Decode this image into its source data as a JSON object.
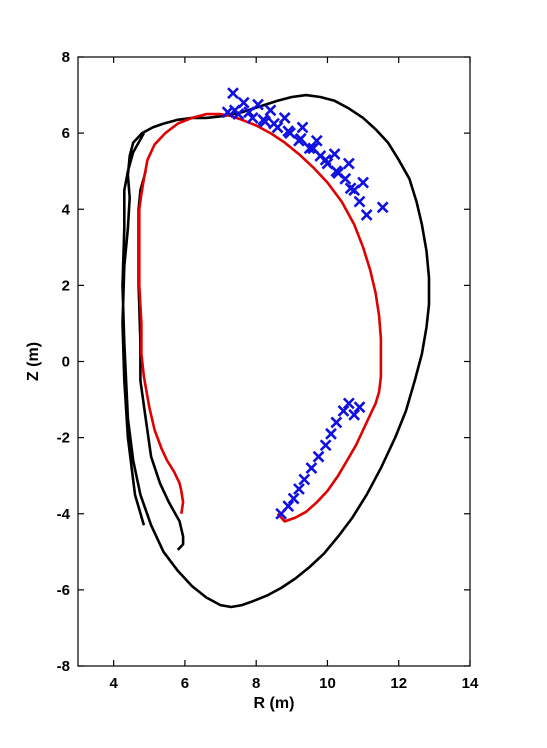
{
  "chart_data": {
    "type": "line",
    "xlabel": "R (m)",
    "ylabel": "Z (m)",
    "xlim": [
      3,
      14
    ],
    "ylim": [
      -8,
      8
    ],
    "xticks": [
      4,
      6,
      8,
      10,
      12,
      14
    ],
    "yticks": [
      -8,
      -6,
      -4,
      -2,
      0,
      2,
      4,
      6,
      8
    ],
    "grid": false,
    "colors": {
      "outer": "#000000",
      "dashdot": "#000000",
      "inner": "#e00000",
      "markers": "#1010e0"
    },
    "series": [
      {
        "style": "outer-wall",
        "x": [
          4.85,
          4.55,
          4.4,
          4.3,
          4.3,
          4.25,
          4.3,
          4.35,
          4.4,
          4.55,
          4.75,
          5.05,
          5.4,
          5.8,
          6.2,
          6.6,
          7.0,
          7.3,
          7.6,
          7.9,
          8.3,
          8.7,
          9.1,
          9.5,
          9.9,
          10.3,
          10.7,
          11.1,
          11.5,
          11.9,
          12.2,
          12.45,
          12.65,
          12.78,
          12.85,
          12.85,
          12.78,
          12.65,
          12.5,
          12.3,
          12.0,
          11.7,
          11.35,
          11.0,
          10.6,
          10.2,
          9.8,
          9.4,
          9.0,
          8.6,
          8.1,
          7.6,
          7.1,
          6.6,
          6.2,
          5.8,
          5.4,
          5.1,
          4.8,
          4.55,
          4.45,
          4.4,
          4.45,
          4.4,
          4.3,
          4.25,
          4.3,
          4.4,
          4.6,
          4.85
        ],
        "y": [
          6.0,
          5.5,
          5.0,
          4.5,
          3.5,
          2.0,
          0.5,
          -0.5,
          -1.5,
          -2.6,
          -3.5,
          -4.3,
          -5.0,
          -5.5,
          -5.9,
          -6.2,
          -6.4,
          -6.45,
          -6.4,
          -6.3,
          -6.15,
          -5.95,
          -5.7,
          -5.4,
          -5.05,
          -4.6,
          -4.1,
          -3.5,
          -2.8,
          -2.0,
          -1.3,
          -0.5,
          0.2,
          0.9,
          1.5,
          2.2,
          2.9,
          3.6,
          4.2,
          4.8,
          5.3,
          5.75,
          6.1,
          6.4,
          6.65,
          6.85,
          6.95,
          7.0,
          6.95,
          6.85,
          6.7,
          6.55,
          6.45,
          6.4,
          6.4,
          6.35,
          6.25,
          6.15,
          6.0,
          5.75,
          5.4,
          4.9,
          4.3,
          3.5,
          2.5,
          1.0,
          -0.5,
          -2.0,
          -3.5,
          -4.3
        ]
      },
      {
        "style": "inner-wall",
        "x": [
          4.9,
          4.75,
          4.7,
          4.7,
          4.75,
          4.75,
          4.9,
          5.05,
          5.3,
          5.55,
          5.85,
          5.95,
          5.95,
          5.85,
          5.8
        ],
        "y": [
          5.0,
          4.5,
          4.0,
          2.0,
          0.5,
          -0.5,
          -1.5,
          -2.5,
          -3.2,
          -3.7,
          -4.2,
          -4.6,
          -4.8,
          -4.9,
          -4.95
        ]
      },
      {
        "style": "limiter",
        "x": [
          5.9,
          5.95,
          5.9,
          5.85,
          5.7,
          5.5,
          5.35,
          5.15,
          5.0,
          4.85,
          4.78,
          4.78,
          4.72,
          4.72,
          4.78,
          4.85,
          4.95,
          5.15,
          5.45,
          5.8,
          6.2,
          6.6,
          7.0,
          7.3,
          7.6,
          8.0,
          8.4,
          8.8,
          9.2,
          9.6,
          10.0,
          10.4,
          10.75,
          11.0,
          11.2,
          11.35,
          11.45,
          11.5,
          11.5,
          11.5,
          11.45,
          11.35,
          11.2,
          11.0,
          10.8,
          10.55,
          10.3,
          10.0,
          9.7,
          9.4,
          9.1,
          8.8,
          8.6
        ],
        "y": [
          -4.0,
          -3.7,
          -3.4,
          -3.2,
          -2.9,
          -2.6,
          -2.3,
          -1.8,
          -1.2,
          -0.4,
          0.2,
          1.0,
          2.0,
          4.0,
          4.4,
          4.8,
          5.3,
          5.7,
          6.0,
          6.25,
          6.4,
          6.5,
          6.5,
          6.45,
          6.35,
          6.2,
          6.0,
          5.75,
          5.45,
          5.1,
          4.7,
          4.2,
          3.6,
          3.0,
          2.4,
          1.8,
          1.2,
          0.6,
          0.0,
          -0.4,
          -0.8,
          -1.1,
          -1.4,
          -1.8,
          -2.2,
          -2.6,
          -3.0,
          -3.4,
          -3.7,
          -3.95,
          -4.1,
          -4.2,
          -4.0
        ]
      },
      {
        "style": "markers",
        "x": [
          7.35,
          7.65,
          8.05,
          8.4,
          8.8,
          9.3,
          9.7,
          10.2,
          10.6,
          11.0,
          11.55,
          7.2,
          7.5,
          7.9,
          8.25,
          8.6,
          8.95,
          9.2,
          9.5,
          9.8,
          10.0,
          10.25,
          10.5,
          10.75,
          10.9,
          11.1,
          8.7,
          8.9,
          9.05,
          9.2,
          9.35,
          9.55,
          9.75,
          9.95,
          10.1,
          10.25,
          10.45,
          10.6,
          10.75,
          10.9,
          7.4,
          7.8,
          8.2,
          8.5,
          8.9,
          9.25,
          9.6,
          9.95,
          10.3,
          10.65
        ],
        "y": [
          7.05,
          6.8,
          6.75,
          6.6,
          6.4,
          6.15,
          5.8,
          5.45,
          5.2,
          4.7,
          4.05,
          6.55,
          6.5,
          6.4,
          6.3,
          6.15,
          6.0,
          5.8,
          5.6,
          5.4,
          5.2,
          5.0,
          4.8,
          4.5,
          4.2,
          3.85,
          -4.0,
          -3.8,
          -3.6,
          -3.35,
          -3.1,
          -2.8,
          -2.5,
          -2.2,
          -1.9,
          -1.6,
          -1.3,
          -1.1,
          -1.4,
          -1.2,
          6.6,
          6.55,
          6.35,
          6.25,
          6.05,
          5.85,
          5.6,
          5.3,
          4.95,
          4.55
        ]
      }
    ]
  }
}
